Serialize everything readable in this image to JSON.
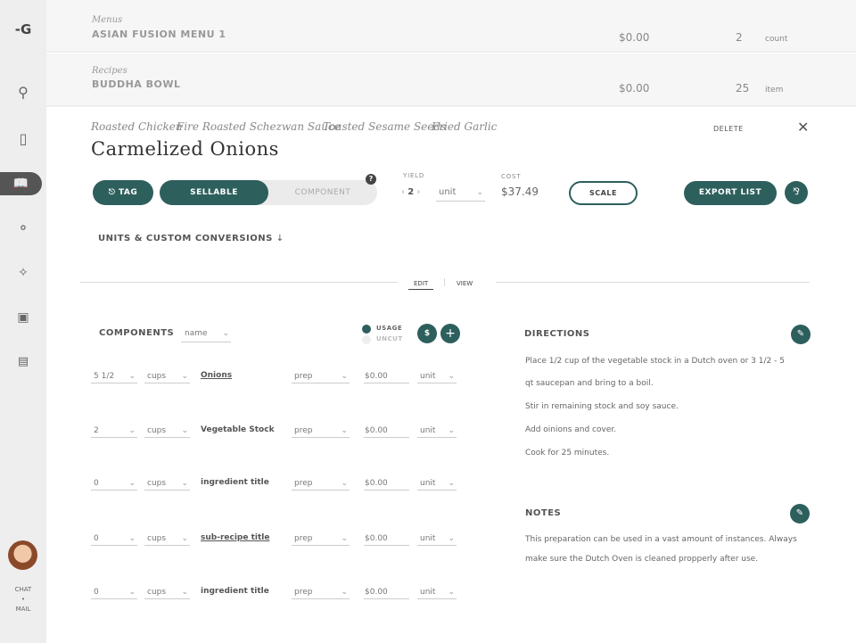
{
  "colors": {
    "accent": "#2d5f5d",
    "sidebar": "#eeeeee"
  },
  "sidebar": {
    "logo": "-G",
    "items": [
      {
        "icon": "search-icon"
      },
      {
        "icon": "clipboard-icon"
      },
      {
        "icon": "book-icon",
        "active": true
      },
      {
        "icon": "onion-icon"
      },
      {
        "icon": "tag-tools-icon"
      },
      {
        "icon": "cart-icon"
      },
      {
        "icon": "document-icon"
      }
    ],
    "chat": "CHAT",
    "dot": "•",
    "mail": "MAIL"
  },
  "rows": [
    {
      "category": "Menus",
      "title": "ASIAN FUSION MENU 1",
      "price": "$0.00",
      "qty": "2",
      "unit": "count"
    },
    {
      "category": "Recipes",
      "title": "BUDDHA BOWL",
      "price": "$0.00",
      "qty": "25",
      "unit": "item"
    }
  ],
  "breadcrumbs": [
    "Roasted Chicken",
    "Fire Roasted Schezwan Sauce",
    "Toasted Sesame Seeds",
    "Fried Garlic"
  ],
  "title": "Carmelized Onions",
  "delete": "DELETE",
  "tag": "TAG",
  "sellable": "SELLABLE",
  "component": "COMPONENT",
  "help": "?",
  "yield": {
    "label": "YIELD",
    "value": "2",
    "unit": "unit"
  },
  "cost": {
    "label": "COST",
    "value": "$37.49"
  },
  "scale": "SCALE",
  "export": "EXPORT LIST",
  "units_conversions": "UNITS & CUSTOM CONVERSIONS",
  "tabs": {
    "edit": "EDIT",
    "view": "VIEW"
  },
  "components": {
    "label": "COMPONENTS",
    "sort": "name",
    "usage": "USAGE",
    "uncut": "UNCUT",
    "dollar": "$",
    "plus": "+",
    "rows": [
      {
        "qty": "5 1/2",
        "unit": "cups",
        "name": "Onions",
        "link": true,
        "prep": "prep",
        "cost": "$0.00",
        "cunit": "unit"
      },
      {
        "qty": "2",
        "unit": "cups",
        "name": "Vegetable Stock",
        "link": false,
        "prep": "prep",
        "cost": "$0.00",
        "cunit": "unit"
      },
      {
        "qty": "0",
        "unit": "cups",
        "name": "ingredient title",
        "link": false,
        "prep": "prep",
        "cost": "$0.00",
        "cunit": "unit"
      },
      {
        "qty": "0",
        "unit": "cups",
        "name": "sub-recipe title",
        "link": true,
        "prep": "prep",
        "cost": "$0.00",
        "cunit": "unit"
      },
      {
        "qty": "0",
        "unit": "cups",
        "name": "ingredient title",
        "link": false,
        "prep": "prep",
        "cost": "$0.00",
        "cunit": "unit"
      }
    ]
  },
  "directions": {
    "label": "DIRECTIONS",
    "lines": [
      "Place 1/2 cup of the vegetable stock in a Dutch oven or 3 1/2 - 5",
      "qt saucepan and bring to a boil.",
      "Stir in remaining stock and soy sauce.",
      "Add oinions and cover.",
      "Cook for 25 minutes."
    ]
  },
  "notes": {
    "label": "NOTES",
    "lines": [
      "This preparation can be used in a vast amount of instances. Always",
      "make sure the Dutch Oven is cleaned propperly after use."
    ]
  }
}
